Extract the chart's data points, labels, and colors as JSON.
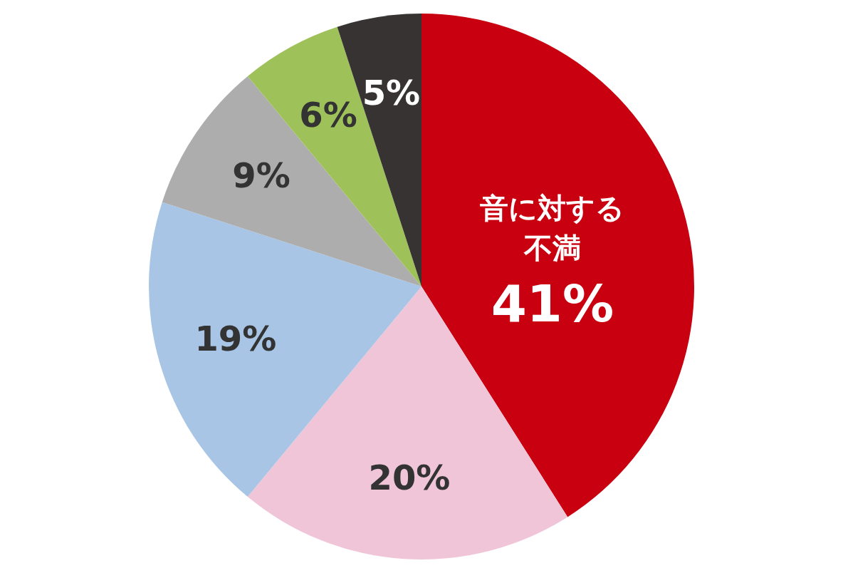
{
  "chart_data": {
    "type": "pie",
    "categories": [
      "音に対する不満",
      null,
      null,
      null,
      null,
      null
    ],
    "values": [
      41,
      20,
      19,
      9,
      6,
      5
    ],
    "colors": [
      "#c8000f",
      "#f0c5d8",
      "#a8c5e5",
      "#adadad",
      "#9fc15a",
      "#373333"
    ],
    "value_labels": [
      "41%",
      "20%",
      "19%",
      "9%",
      "6%",
      "5%"
    ]
  }
}
